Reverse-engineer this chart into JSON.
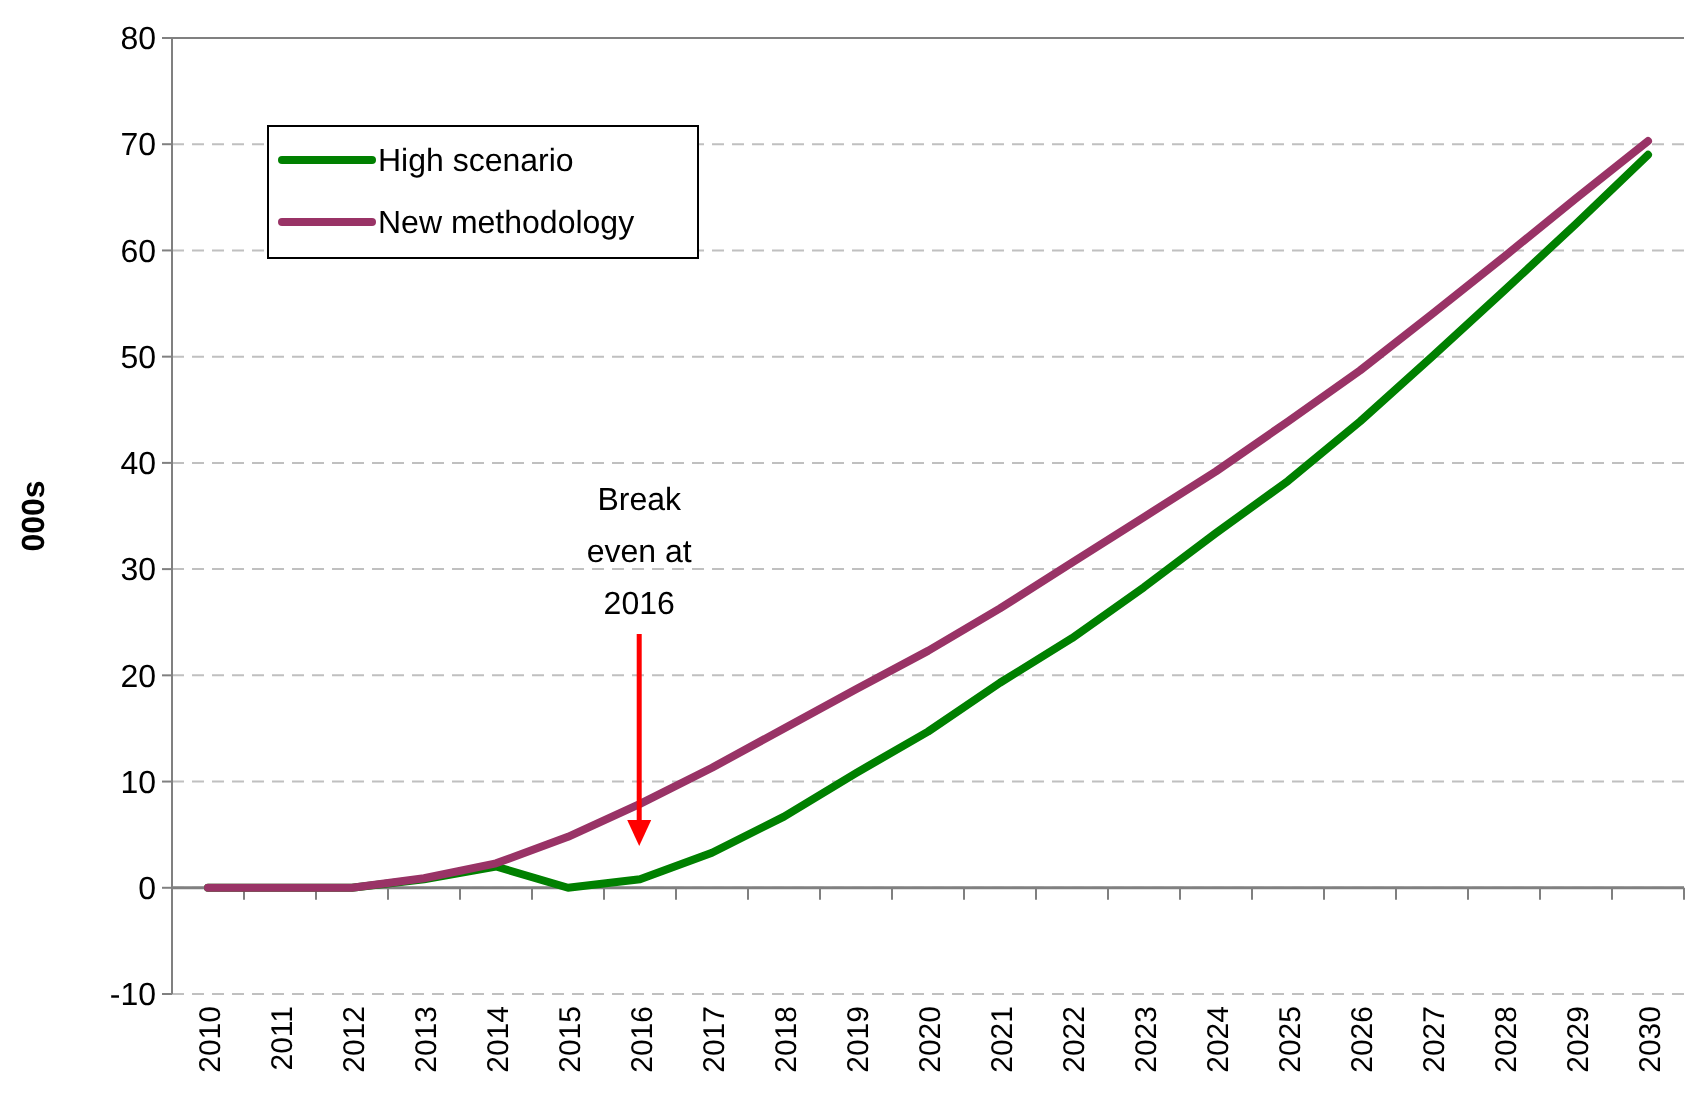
{
  "chart_data": {
    "type": "line",
    "ylabel": "000s",
    "categories": [
      "2010",
      "2011",
      "2012",
      "2013",
      "2014",
      "2015",
      "2016",
      "2017",
      "2018",
      "2019",
      "2020",
      "2021",
      "2022",
      "2023",
      "2024",
      "2025",
      "2026",
      "2027",
      "2028",
      "2029",
      "2030"
    ],
    "series": [
      {
        "name": "High scenario",
        "color": "#008000",
        "values": [
          0,
          0,
          0,
          0.8,
          2,
          0,
          0.8,
          3.3,
          6.7,
          10.8,
          14.7,
          19.3,
          23.5,
          28.3,
          33.4,
          38.3,
          43.9,
          50,
          56.2,
          62.5,
          69
        ]
      },
      {
        "name": "New methodology",
        "color": "#993366",
        "values": [
          0,
          0,
          0,
          0.9,
          2.3,
          4.8,
          7.9,
          11.3,
          15,
          18.7,
          22.3,
          26.3,
          30.6,
          34.9,
          39.2,
          43.9,
          48.7,
          54,
          59.4,
          64.9,
          70.3
        ]
      }
    ],
    "ylim": [
      -10,
      80
    ],
    "yticks": [
      -10,
      0,
      10,
      20,
      30,
      40,
      50,
      60,
      70,
      80
    ],
    "grid": "y",
    "legend": "top left",
    "marker": "none",
    "line_style": "solid",
    "annotations": [
      "Break even at 2016"
    ]
  }
}
